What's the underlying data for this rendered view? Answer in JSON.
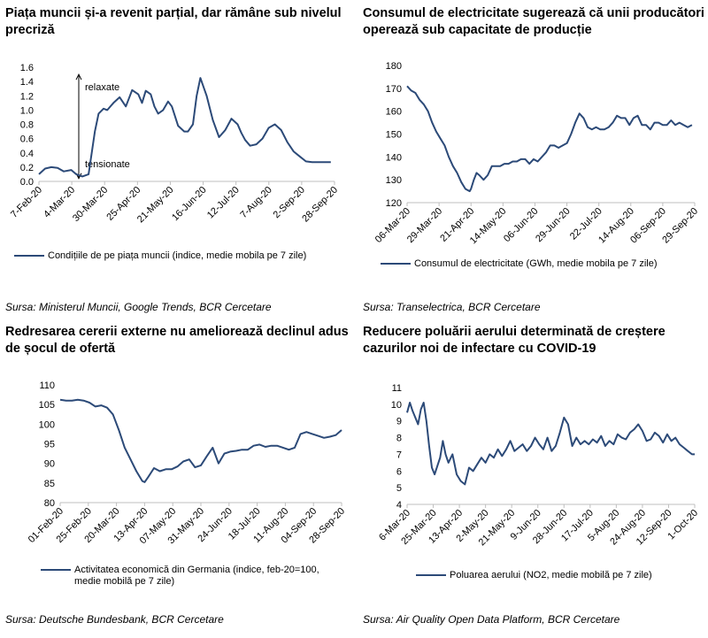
{
  "colors": {
    "line": "#2c4a78",
    "axis": "#bfbfbf",
    "text": "#000000"
  },
  "panels": [
    {
      "title": "Piața  muncii și-a revenit parțial, dar rămâne sub nivelul precriză",
      "legend": "Condițiile de pe piața muncii (indice, medie mobila pe 7 zile)",
      "source": "Sursa: Ministerul Muncii, Google Trends, BCR Cercetare"
    },
    {
      "title": "Consumul de electricitate sugerează că unii producători operează sub capacitate de producție",
      "legend": "Consumul de electricitate (GWh, medie mobila pe 7 zile)",
      "source": "Sursa: Transelectrica, BCR Cercetare"
    },
    {
      "title": "Redresarea cererii externe nu ameliorează declinul adus de șocul de ofertă",
      "legend_line1": "Activitatea economică din Germania (indice, feb-20=100,",
      "legend_line2": "medie mobilă pe 7 zile)",
      "source": "Sursa: Deutsche Bundesbank, BCR Cercetare"
    },
    {
      "title": "Reducere poluării aerului determinată de creștere cazurilor noi de infectare cu COVID-19",
      "legend": "Poluarea aerului (NO2, medie mobilă pe 7 zile)",
      "source": "Sursa: Air Quality Open Data Platform, BCR Cercetare"
    }
  ],
  "chart_data": [
    {
      "type": "line",
      "title": "Piața  muncii și-a revenit parțial, dar rămâne sub nivelul precriză",
      "ylim": [
        0,
        1.6
      ],
      "yticks": [
        "0.0",
        "0.2",
        "0.4",
        "0.6",
        "0.8",
        "1.0",
        "1.2",
        "1.4",
        "1.6"
      ],
      "xticks": [
        "7-Feb-20",
        "4-Mar-20",
        "30-Mar-20",
        "25-Apr-20",
        "21-May-20",
        "16-Jun-20",
        "12-Jul-20",
        "7-Aug-20",
        "2-Sep-20",
        "28-Sep-20"
      ],
      "xrange": [
        0,
        238
      ],
      "annotations": {
        "top": "relaxate",
        "bottom": "tensionate"
      },
      "series": [
        {
          "name": "Condițiile de pe piața muncii (indice, medie mobila pe 7 zile)",
          "x": [
            0,
            5,
            10,
            15,
            20,
            26,
            30,
            35,
            40,
            45,
            48,
            52,
            55,
            60,
            65,
            70,
            75,
            80,
            83,
            86,
            90,
            93,
            96,
            100,
            104,
            107,
            112,
            117,
            120,
            124,
            127,
            130,
            135,
            140,
            145,
            150,
            155,
            160,
            163,
            166,
            170,
            175,
            180,
            185,
            190,
            195,
            200,
            205,
            210,
            215,
            220,
            225,
            230,
            235
          ],
          "y": [
            0.1,
            0.18,
            0.2,
            0.19,
            0.14,
            0.16,
            0.1,
            0.07,
            0.1,
            0.7,
            0.95,
            1.02,
            1.0,
            1.1,
            1.18,
            1.05,
            1.28,
            1.22,
            1.1,
            1.27,
            1.22,
            1.05,
            0.95,
            1.0,
            1.12,
            1.05,
            0.78,
            0.7,
            0.7,
            0.8,
            1.2,
            1.45,
            1.2,
            0.86,
            0.62,
            0.72,
            0.88,
            0.8,
            0.68,
            0.58,
            0.5,
            0.52,
            0.6,
            0.75,
            0.8,
            0.72,
            0.55,
            0.42,
            0.35,
            0.28,
            0.27,
            0.27,
            0.27,
            0.27
          ]
        }
      ]
    },
    {
      "type": "line",
      "title": "Consumul de electricitate sugerează că unii producători operează sub capacitate de producție",
      "ylim": [
        120,
        180
      ],
      "yticks": [
        "120",
        "130",
        "140",
        "150",
        "160",
        "170",
        "180"
      ],
      "xticks": [
        "06-Mar-20",
        "29-Mar-20",
        "21-Apr-20",
        "14-May-20",
        "06-Jun-20",
        "29-Jun-20",
        "22-Jul-20",
        "14-Aug-20",
        "06-Sep-20",
        "29-Sep-20"
      ],
      "xrange": [
        0,
        207
      ],
      "series": [
        {
          "name": "Consumul de electricitate (GWh, medie mobila pe 7 zile)",
          "x": [
            0,
            3,
            6,
            9,
            12,
            15,
            18,
            21,
            24,
            27,
            30,
            33,
            36,
            39,
            42,
            45,
            46,
            48,
            50,
            52,
            55,
            58,
            61,
            64,
            67,
            70,
            73,
            76,
            79,
            82,
            85,
            88,
            91,
            94,
            97,
            100,
            103,
            106,
            109,
            112,
            115,
            118,
            121,
            124,
            127,
            130,
            133,
            136,
            139,
            142,
            145,
            148,
            151,
            154,
            157,
            160,
            163,
            166,
            169,
            172,
            175,
            178,
            181,
            184,
            187,
            190,
            193,
            196,
            199,
            202,
            205
          ],
          "y": [
            171,
            169,
            168,
            165,
            163,
            160,
            155,
            151,
            148,
            145,
            140,
            136,
            133,
            129,
            126,
            125,
            126,
            130,
            133,
            132,
            130,
            132,
            136,
            136,
            136,
            137,
            137,
            138,
            138,
            139,
            139,
            137,
            139,
            138,
            140,
            142,
            145,
            145,
            144,
            145,
            146,
            150,
            155,
            159,
            157,
            153,
            152,
            153,
            152,
            152,
            153,
            155,
            158,
            157,
            157,
            154,
            157,
            158,
            154,
            154,
            152,
            155,
            155,
            154,
            154,
            156,
            154,
            155,
            154,
            153,
            154
          ]
        }
      ]
    },
    {
      "type": "line",
      "title": "Redresarea cererii externe nu ameliorează declinul adus de șocul de ofertă",
      "ylim": [
        80,
        110
      ],
      "yticks": [
        "80",
        "85",
        "90",
        "95",
        "100",
        "105",
        "110"
      ],
      "xticks": [
        "01-Feb-20",
        "25-Feb-20",
        "20-Mar-20",
        "13-Apr-20",
        "07-May-20",
        "31-May-20",
        "24-Jun-20",
        "18-Jul-20",
        "11-Aug-20",
        "04-Sep-20",
        "28-Sep-20"
      ],
      "xrange": [
        0,
        240
      ],
      "series": [
        {
          "name": "Activitatea economică din Germania (indice, feb-20=100, medie mobilă pe 7 zile)",
          "x": [
            0,
            5,
            10,
            15,
            20,
            25,
            30,
            35,
            40,
            45,
            50,
            55,
            60,
            65,
            70,
            72,
            75,
            80,
            85,
            90,
            95,
            100,
            105,
            110,
            115,
            120,
            125,
            130,
            135,
            140,
            145,
            150,
            155,
            160,
            165,
            170,
            175,
            180,
            185,
            190,
            195,
            200,
            205,
            210,
            215,
            220,
            225,
            230,
            235,
            240
          ],
          "y": [
            106.2,
            106,
            106,
            106.2,
            106,
            105.5,
            104.5,
            104.8,
            104.2,
            102.5,
            98.5,
            94,
            91,
            88,
            85.5,
            85.2,
            86.5,
            88.8,
            88,
            88.5,
            88.5,
            89.2,
            90.5,
            91,
            89,
            89.5,
            91.8,
            94,
            90,
            92.5,
            93,
            93.2,
            93.5,
            93.5,
            94.5,
            94.8,
            94.2,
            94.5,
            94.5,
            94,
            93.5,
            94,
            97.5,
            98,
            97.5,
            97,
            96.5,
            96.8,
            97.2,
            98.5
          ]
        }
      ]
    },
    {
      "type": "line",
      "title": "Reducere poluării aerului determinată de creștere cazurilor noi de infectare cu COVID-19",
      "ylim": [
        4,
        11
      ],
      "yticks": [
        "4",
        "5",
        "6",
        "7",
        "8",
        "9",
        "10",
        "11"
      ],
      "xticks": [
        "6-Mar-20",
        "25-Mar-20",
        "13-Apr-20",
        "2-May-20",
        "21-May-20",
        "9-Jun-20",
        "28-Jun-20",
        "17-Jul-20",
        "5-Aug-20",
        "24-Aug-20",
        "12-Sep-20",
        "1-Oct-20"
      ],
      "xrange": [
        0,
        209
      ],
      "series": [
        {
          "name": "Poluarea aerului (NO2, medie mobilă pe 7 zile)",
          "x": [
            0,
            2,
            4,
            6,
            8,
            10,
            12,
            14,
            16,
            18,
            20,
            22,
            24,
            26,
            28,
            30,
            33,
            36,
            39,
            42,
            45,
            48,
            51,
            54,
            57,
            60,
            63,
            66,
            69,
            72,
            75,
            78,
            81,
            84,
            87,
            90,
            93,
            96,
            99,
            102,
            105,
            108,
            111,
            114,
            117,
            120,
            123,
            126,
            129,
            132,
            135,
            138,
            141,
            144,
            147,
            150,
            153,
            156,
            159,
            162,
            165,
            168,
            171,
            174,
            177,
            180,
            183,
            186,
            189,
            192,
            195,
            198,
            201,
            204,
            207,
            209
          ],
          "y": [
            9.5,
            10.1,
            9.6,
            9.2,
            8.8,
            9.7,
            10.1,
            9.0,
            7.5,
            6.2,
            5.8,
            6.3,
            6.8,
            7.8,
            7.0,
            6.5,
            7.0,
            5.8,
            5.4,
            5.2,
            6.2,
            6.0,
            6.4,
            6.8,
            6.5,
            7.0,
            6.8,
            7.3,
            6.9,
            7.3,
            7.8,
            7.2,
            7.4,
            7.6,
            7.2,
            7.5,
            8.0,
            7.6,
            7.3,
            8.0,
            7.2,
            7.5,
            8.3,
            9.2,
            8.8,
            7.5,
            8.0,
            7.6,
            7.8,
            7.6,
            7.9,
            7.7,
            8.1,
            7.5,
            7.8,
            7.6,
            8.2,
            8.0,
            7.9,
            8.3,
            8.5,
            8.8,
            8.4,
            7.8,
            7.9,
            8.3,
            8.1,
            7.7,
            8.2,
            7.8,
            8.0,
            7.6,
            7.4,
            7.2,
            7.0,
            7.0
          ]
        }
      ]
    }
  ]
}
